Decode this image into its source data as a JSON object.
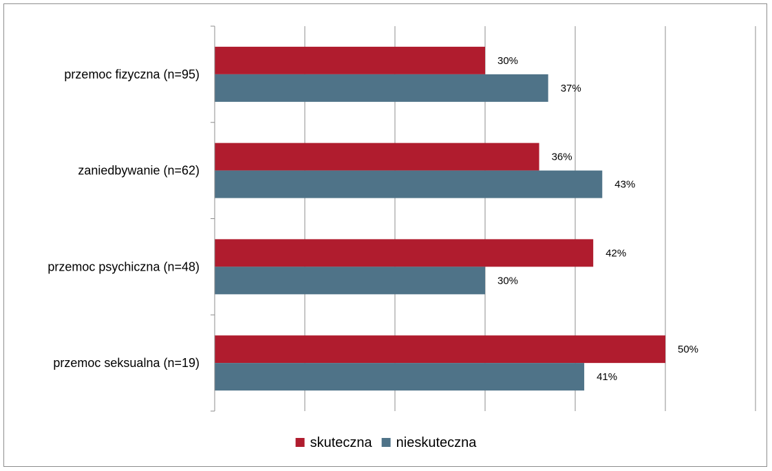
{
  "chart_data": {
    "type": "bar",
    "orientation": "horizontal",
    "categories": [
      "przemoc fizyczna (n=95)",
      "zaniedbywanie (n=62)",
      "przemoc psychiczna (n=48)",
      "przemoc seksualna (n=19)"
    ],
    "series": [
      {
        "name": "skuteczna",
        "color": "#B01C2E",
        "values": [
          30,
          36,
          42,
          50
        ],
        "labels": [
          "30%",
          "36%",
          "42%",
          "50%"
        ]
      },
      {
        "name": "nieskuteczna",
        "color": "#4F7388",
        "values": [
          37,
          43,
          30,
          41
        ],
        "labels": [
          "37%",
          "43%",
          "30%",
          "41%"
        ]
      }
    ],
    "xlim": [
      0,
      60
    ],
    "x_gridline_step": 10,
    "x_tick_labels_shown": false,
    "grid": true,
    "legend": "bottom",
    "title": "",
    "xlabel": "",
    "ylabel": ""
  }
}
